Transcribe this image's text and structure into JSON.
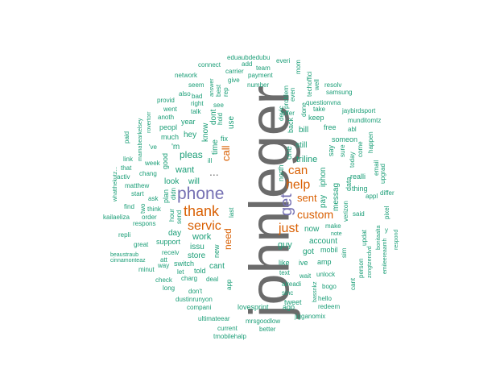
{
  "colors": {
    "background": "#ffffff",
    "gray": "#6b6b6b",
    "teal": "#1b9e77",
    "orange": "#d95f02",
    "purple": "#7570b3"
  },
  "words": [
    {
      "text": "johnleger",
      "color": "gray"
    },
    {
      "text": "phone",
      "color": "purple"
    },
    {
      "text": "get",
      "color": "purple"
    },
    {
      "text": "thank",
      "color": "orange"
    },
    {
      "text": "servic",
      "color": "orange"
    },
    {
      "text": "help",
      "color": "orange"
    },
    {
      "text": "can",
      "color": "orange"
    },
    {
      "text": "just",
      "color": "orange"
    },
    {
      "text": "custom",
      "color": "orange"
    },
    {
      "text": "call",
      "color": "orange"
    },
    {
      "text": "need",
      "color": "orange"
    },
    {
      "text": "sent",
      "color": "orange"
    },
    {
      "text": "...",
      "color": "gray"
    },
    {
      "text": "pleas",
      "color": "teal"
    },
    {
      "text": "want",
      "color": "teal"
    },
    {
      "text": "work",
      "color": "teal"
    },
    {
      "text": "look",
      "color": "teal"
    },
    {
      "text": "will",
      "color": "teal"
    },
    {
      "text": "'m",
      "color": "teal"
    },
    {
      "text": "hey",
      "color": "teal"
    },
    {
      "text": "day",
      "color": "teal"
    },
    {
      "text": "issu",
      "color": "teal"
    },
    {
      "text": "store",
      "color": "teal"
    },
    {
      "text": "support",
      "color": "teal"
    },
    {
      "text": "switch",
      "color": "teal"
    },
    {
      "text": "told",
      "color": "teal"
    },
    {
      "text": "cant",
      "color": "teal"
    },
    {
      "text": "new",
      "color": "teal"
    },
    {
      "text": "deal",
      "color": "teal"
    },
    {
      "text": "charg",
      "color": "teal"
    },
    {
      "text": "let",
      "color": "teal"
    },
    {
      "text": "don't",
      "color": "teal"
    },
    {
      "text": "compani",
      "color": "teal"
    },
    {
      "text": "dustinrunyon",
      "color": "teal"
    },
    {
      "text": "ultimateear",
      "color": "teal"
    },
    {
      "text": "current",
      "color": "teal"
    },
    {
      "text": "tmobilehalp",
      "color": "teal"
    },
    {
      "text": "mrsgoodlow",
      "color": "teal"
    },
    {
      "text": "better",
      "color": "teal"
    },
    {
      "text": "lovesprint",
      "color": "teal"
    },
    {
      "text": "ago",
      "color": "teal"
    },
    {
      "text": "tweet",
      "color": "teal"
    },
    {
      "text": "jigganomix",
      "color": "teal"
    },
    {
      "text": "redeem",
      "color": "teal"
    },
    {
      "text": "hello",
      "color": "teal"
    },
    {
      "text": "bogo",
      "color": "teal"
    },
    {
      "text": "unlock",
      "color": "teal"
    },
    {
      "text": "wait",
      "color": "teal"
    },
    {
      "text": "alreadi",
      "color": "teal"
    },
    {
      "text": "sinc",
      "color": "teal"
    },
    {
      "text": "text",
      "color": "teal"
    },
    {
      "text": "like",
      "color": "teal"
    },
    {
      "text": "ive",
      "color": "teal"
    },
    {
      "text": "amp",
      "color": "teal"
    },
    {
      "text": "guy",
      "color": "teal"
    },
    {
      "text": "got",
      "color": "teal"
    },
    {
      "text": "account",
      "color": "teal"
    },
    {
      "text": "mobil",
      "color": "teal"
    },
    {
      "text": "now",
      "color": "teal"
    },
    {
      "text": "make",
      "color": "teal"
    },
    {
      "text": "note",
      "color": "teal"
    },
    {
      "text": "triline",
      "color": "teal"
    },
    {
      "text": "still",
      "color": "teal"
    },
    {
      "text": "one",
      "color": "teal"
    },
    {
      "text": "north",
      "color": "teal"
    },
    {
      "text": "iphon",
      "color": "teal"
    },
    {
      "text": "messag",
      "color": "teal"
    },
    {
      "text": "pay",
      "color": "teal"
    },
    {
      "text": "bill",
      "color": "teal"
    },
    {
      "text": "free",
      "color": "teal"
    },
    {
      "text": "keep",
      "color": "teal"
    },
    {
      "text": "back",
      "color": "teal"
    },
    {
      "text": "done",
      "color": "teal"
    },
    {
      "text": "offer",
      "color": "teal"
    },
    {
      "text": "devic",
      "color": "teal"
    },
    {
      "text": "problem",
      "color": "teal"
    },
    {
      "text": "even",
      "color": "teal"
    },
    {
      "text": "mom",
      "color": "teal"
    },
    {
      "text": "techoffici",
      "color": "teal"
    },
    {
      "text": "take",
      "color": "teal"
    },
    {
      "text": "well",
      "color": "teal"
    },
    {
      "text": "resolv",
      "color": "teal"
    },
    {
      "text": "samsung",
      "color": "teal"
    },
    {
      "text": "questionvna",
      "color": "teal"
    },
    {
      "text": "jaybirdsport",
      "color": "teal"
    },
    {
      "text": "munditomtz",
      "color": "teal"
    },
    {
      "text": "abl",
      "color": "teal"
    },
    {
      "text": "happen",
      "color": "teal"
    },
    {
      "text": "come",
      "color": "teal"
    },
    {
      "text": "someon",
      "color": "teal"
    },
    {
      "text": "sure",
      "color": "teal"
    },
    {
      "text": "say",
      "color": "teal"
    },
    {
      "text": "today",
      "color": "teal"
    },
    {
      "text": "data",
      "color": "teal"
    },
    {
      "text": "thing",
      "color": "teal"
    },
    {
      "text": "realli",
      "color": "teal"
    },
    {
      "text": "upgrad",
      "color": "teal"
    },
    {
      "text": "email",
      "color": "teal"
    },
    {
      "text": "appl",
      "color": "teal"
    },
    {
      "text": "differ",
      "color": "teal"
    },
    {
      "text": "pixel",
      "color": "teal"
    },
    {
      "text": "y",
      "color": "teal"
    },
    {
      "text": "respond",
      "color": "teal"
    },
    {
      "text": "said",
      "color": "teal"
    },
    {
      "text": "verizon",
      "color": "teal"
    },
    {
      "text": "updat",
      "color": "teal"
    },
    {
      "text": "person",
      "color": "teal"
    },
    {
      "text": "zongtzendvd",
      "color": "teal"
    },
    {
      "text": "bonitaalta",
      "color": "teal"
    },
    {
      "text": "emileereaamh",
      "color": "teal"
    },
    {
      "text": "sim",
      "color": "teal"
    },
    {
      "text": "cant",
      "color": "teal"
    },
    {
      "text": "bassnkz",
      "color": "teal"
    },
    {
      "text": "connect",
      "color": "teal"
    },
    {
      "text": "eduaubdedubu",
      "color": "teal"
    },
    {
      "text": "add",
      "color": "teal"
    },
    {
      "text": "everi",
      "color": "teal"
    },
    {
      "text": "team",
      "color": "teal"
    },
    {
      "text": "carrier",
      "color": "teal"
    },
    {
      "text": "payment",
      "color": "teal"
    },
    {
      "text": "network",
      "color": "teal"
    },
    {
      "text": "give",
      "color": "teal"
    },
    {
      "text": "number",
      "color": "teal"
    },
    {
      "text": "seem",
      "color": "teal"
    },
    {
      "text": "answer",
      "color": "teal"
    },
    {
      "text": "best",
      "color": "teal"
    },
    {
      "text": "rep",
      "color": "teal"
    },
    {
      "text": "also",
      "color": "teal"
    },
    {
      "text": "bad",
      "color": "teal"
    },
    {
      "text": "provid",
      "color": "teal"
    },
    {
      "text": "right",
      "color": "teal"
    },
    {
      "text": "went",
      "color": "teal"
    },
    {
      "text": "talk",
      "color": "teal"
    },
    {
      "text": "see",
      "color": "teal"
    },
    {
      "text": "hold",
      "color": "teal"
    },
    {
      "text": "anoth",
      "color": "teal"
    },
    {
      "text": "year",
      "color": "teal"
    },
    {
      "text": "peopl",
      "color": "teal"
    },
    {
      "text": "dont",
      "color": "teal"
    },
    {
      "text": "use",
      "color": "teal"
    },
    {
      "text": "fix",
      "color": "teal"
    },
    {
      "text": "much",
      "color": "teal"
    },
    {
      "text": "know",
      "color": "teal"
    },
    {
      "text": "time",
      "color": "teal"
    },
    {
      "text": "mamabearkelsey",
      "color": "teal"
    },
    {
      "text": "rovertorr",
      "color": "teal"
    },
    {
      "text": "paid",
      "color": "teal"
    },
    {
      "text": "'ve",
      "color": "teal"
    },
    {
      "text": "week",
      "color": "teal"
    },
    {
      "text": "good",
      "color": "teal"
    },
    {
      "text": "ill",
      "color": "teal"
    },
    {
      "text": "link",
      "color": "teal"
    },
    {
      "text": "that",
      "color": "teal"
    },
    {
      "text": "activ",
      "color": "teal"
    },
    {
      "text": "chang",
      "color": "teal"
    },
    {
      "text": "whatthekutz...",
      "color": "teal"
    },
    {
      "text": "matthew",
      "color": "teal"
    },
    {
      "text": "start",
      "color": "teal"
    },
    {
      "text": "didn",
      "color": "teal"
    },
    {
      "text": "plan",
      "color": "teal"
    },
    {
      "text": "ask",
      "color": "teal"
    },
    {
      "text": "kailaeliza",
      "color": "teal"
    },
    {
      "text": "think",
      "color": "teal"
    },
    {
      "text": "hour",
      "color": "teal"
    },
    {
      "text": "send",
      "color": "teal"
    },
    {
      "text": "find",
      "color": "teal"
    },
    {
      "text": "two",
      "color": "teal"
    },
    {
      "text": "order",
      "color": "teal"
    },
    {
      "text": "last",
      "color": "teal"
    },
    {
      "text": "repli",
      "color": "teal"
    },
    {
      "text": "respons",
      "color": "teal"
    },
    {
      "text": "beaustraub",
      "color": "teal"
    },
    {
      "text": "great",
      "color": "teal"
    },
    {
      "text": "cinnamonteaz",
      "color": "teal"
    },
    {
      "text": "receiv",
      "color": "teal"
    },
    {
      "text": "att",
      "color": "teal"
    },
    {
      "text": "minut",
      "color": "teal"
    },
    {
      "text": "way",
      "color": "teal"
    },
    {
      "text": "check",
      "color": "teal"
    },
    {
      "text": "long",
      "color": "teal"
    },
    {
      "text": "app",
      "color": "teal"
    }
  ]
}
